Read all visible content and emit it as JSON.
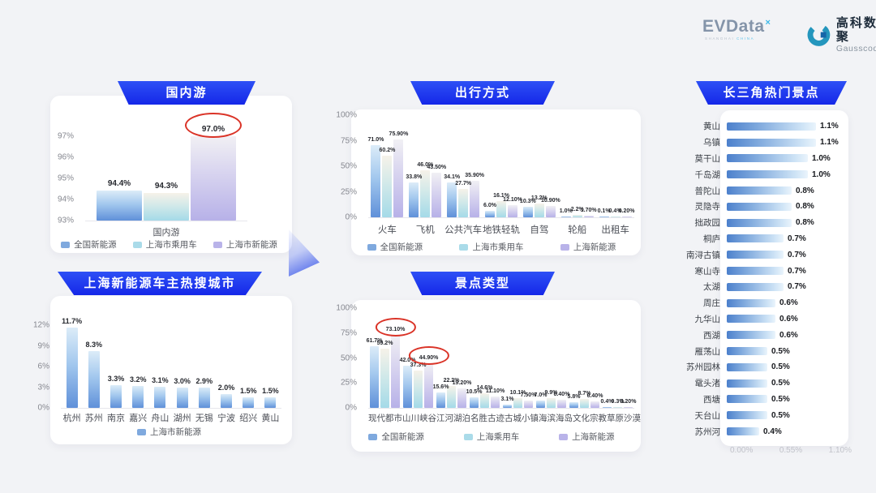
{
  "header": {
    "evdata": {
      "name": "EVData",
      "sup": "×",
      "tagline_left": "SHANGHAI",
      "tagline_right": "CHINA"
    },
    "gausscode": {
      "cn": "高科数聚",
      "en": "Gausscode"
    }
  },
  "colors": {
    "banner_blue": "#1d32ee",
    "series_blue": "#5f90d9",
    "series_cyan": "#a4dae8",
    "series_purple": "#b7b1e8",
    "highlight_red": "#da3327"
  },
  "chart_data": [
    {
      "id": "domestic",
      "type": "bar",
      "title": "国内游",
      "categories": [
        "国内游"
      ],
      "ylim": [
        93,
        97.6
      ],
      "yticks": [
        {
          "label": "97%",
          "v": 97
        },
        {
          "label": "96%",
          "v": 96
        },
        {
          "label": "95%",
          "v": 95
        },
        {
          "label": "94%",
          "v": 94
        },
        {
          "label": "93%",
          "v": 93
        }
      ],
      "series": [
        {
          "name": "全国新能源",
          "color": "blue",
          "values": [
            94.4
          ],
          "labels": [
            "94.4%"
          ]
        },
        {
          "name": "上海市乘用车",
          "color": "cyan",
          "values": [
            94.3
          ],
          "labels": [
            "94.3%"
          ]
        },
        {
          "name": "上海市新能源",
          "color": "purple",
          "values": [
            97.0
          ],
          "labels": [
            "97.0%"
          ],
          "circled": [
            0
          ]
        }
      ]
    },
    {
      "id": "cities",
      "type": "bar",
      "title": "上海新能源车主热搜城市",
      "categories": [
        "杭州",
        "苏州",
        "南京",
        "嘉兴",
        "舟山",
        "湖州",
        "无锡",
        "宁波",
        "绍兴",
        "黄山"
      ],
      "ylim": [
        0,
        13
      ],
      "yticks": [
        {
          "label": "12%",
          "v": 12
        },
        {
          "label": "9%",
          "v": 9
        },
        {
          "label": "6%",
          "v": 6
        },
        {
          "label": "3%",
          "v": 3
        },
        {
          "label": "0%",
          "v": 0
        }
      ],
      "series": [
        {
          "name": "上海市新能源",
          "color": "blue",
          "values": [
            11.7,
            8.3,
            3.3,
            3.2,
            3.1,
            3.0,
            2.9,
            2.0,
            1.5,
            1.5
          ],
          "labels": [
            "11.7%",
            "8.3%",
            "3.3%",
            "3.2%",
            "3.1%",
            "3.0%",
            "2.9%",
            "2.0%",
            "1.5%",
            "1.5%"
          ]
        }
      ]
    },
    {
      "id": "transport",
      "type": "bar",
      "title": "出行方式",
      "categories": [
        "火车",
        "飞机",
        "公共汽车",
        "地铁轻轨",
        "自驾",
        "轮船",
        "出租车"
      ],
      "ylim": [
        0,
        100
      ],
      "yticks": [
        {
          "label": "100%",
          "v": 100
        },
        {
          "label": "75%",
          "v": 75
        },
        {
          "label": "50%",
          "v": 50
        },
        {
          "label": "25%",
          "v": 25
        },
        {
          "label": "0%",
          "v": 0
        }
      ],
      "series": [
        {
          "name": "全国新能源",
          "color": "blue",
          "values": [
            71.0,
            33.8,
            34.1,
            6.0,
            10.3,
            1.0,
            0.1
          ],
          "labels": [
            "71.0%",
            "33.8%",
            "34.1%",
            "6.0%",
            "10.3%",
            "1.0%",
            "0.1%"
          ]
        },
        {
          "name": "上海市乘用车",
          "color": "cyan",
          "values": [
            60.2,
            46.0,
            27.7,
            16.1,
            13.2,
            2.2,
            0.4
          ],
          "labels": [
            "60.2%",
            "46.0%",
            "27.7%",
            "16.1%",
            "13.2%",
            "2.2%",
            "0.4%"
          ]
        },
        {
          "name": "上海新能源",
          "color": "purple",
          "values": [
            75.9,
            43.5,
            35.9,
            12.1,
            10.9,
            1.7,
            0.2
          ],
          "labels": [
            "75.90%",
            "43.50%",
            "35.90%",
            "12.10%",
            "10.90%",
            "1.70%",
            "0.20%"
          ]
        }
      ]
    },
    {
      "id": "attraction_types",
      "type": "bar",
      "title": "景点类型",
      "categories": [
        "现代都市",
        "山川峡谷",
        "江河湖泊",
        "名胜古迹",
        "古城小镇",
        "海滨海岛",
        "文化宗教",
        "草原沙漠"
      ],
      "ylim": [
        0,
        100
      ],
      "yticks": [
        {
          "label": "100%",
          "v": 100
        },
        {
          "label": "75%",
          "v": 75
        },
        {
          "label": "50%",
          "v": 50
        },
        {
          "label": "25%",
          "v": 25
        },
        {
          "label": "0%",
          "v": 0
        }
      ],
      "series": [
        {
          "name": "全国新能源",
          "color": "blue",
          "values": [
            61.7,
            42.0,
            15.6,
            10.5,
            3.1,
            7.0,
            5.8,
            0.4
          ],
          "labels": [
            "61.7%",
            "42.0%",
            "15.6%",
            "10.5%",
            "3.1%",
            "7.0%",
            "5.8%",
            "0.4%"
          ]
        },
        {
          "name": "上海乘用车",
          "color": "cyan",
          "values": [
            59.2,
            37.3,
            22.2,
            14.6,
            10.1,
            9.9,
            8.7,
            0.3
          ],
          "labels": [
            "59.2%",
            "37.3%",
            "22.2%",
            "14.6%",
            "10.1%",
            "9.9%",
            "8.7%",
            "0.3%"
          ]
        },
        {
          "name": "上海新能源",
          "color": "purple",
          "values": [
            73.1,
            44.9,
            19.2,
            11.1,
            7.5,
            8.4,
            6.4,
            0.2
          ],
          "labels": [
            "73.10%",
            "44.90%",
            "19.20%",
            "11.10%",
            "7.50%",
            "8.40%",
            "6.40%",
            "0.20%"
          ],
          "circled": [
            0,
            1
          ]
        }
      ]
    },
    {
      "id": "hot_spots",
      "type": "hbar",
      "title": "长三角热门景点",
      "categories": [
        "黄山",
        "乌镇",
        "莫干山",
        "千岛湖",
        "普陀山",
        "灵隐寺",
        "拙政园",
        "桐庐",
        "南浔古镇",
        "寒山寺",
        "太湖",
        "周庄",
        "九华山",
        "西湖",
        "雁荡山",
        "苏州园林",
        "鼋头渚",
        "西塘",
        "天台山",
        "苏州河"
      ],
      "values": [
        1.1,
        1.1,
        1.0,
        1.0,
        0.8,
        0.8,
        0.8,
        0.7,
        0.7,
        0.7,
        0.7,
        0.6,
        0.6,
        0.6,
        0.5,
        0.5,
        0.5,
        0.5,
        0.5,
        0.4
      ],
      "labels": [
        "1.1%",
        "1.1%",
        "1.0%",
        "1.0%",
        "0.8%",
        "0.8%",
        "0.8%",
        "0.7%",
        "0.7%",
        "0.7%",
        "0.7%",
        "0.6%",
        "0.6%",
        "0.6%",
        "0.5%",
        "0.5%",
        "0.5%",
        "0.5%",
        "0.5%",
        "0.4%"
      ],
      "xlim": [
        0,
        1.21
      ],
      "xticks": [
        "0.00%",
        "0.55%",
        "1.10%"
      ]
    }
  ]
}
